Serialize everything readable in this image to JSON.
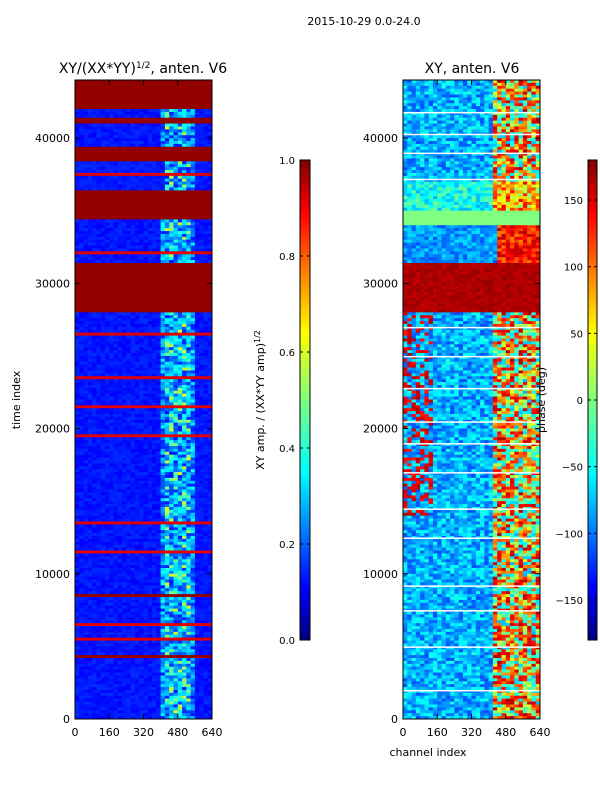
{
  "suptitle": "2015-10-29 0.0-24.0",
  "chart_data": [
    {
      "type": "heatmap",
      "title_main": "XY/(XX*YY)",
      "title_sup": "1/2",
      "title_suffix": ", anten. V6",
      "xlabel": "",
      "ylabel": "time index",
      "xlim": [
        0,
        640
      ],
      "ylim": [
        0,
        44000
      ],
      "xticks": [
        0,
        160,
        320,
        480,
        640
      ],
      "yticks": [
        0,
        10000,
        20000,
        30000,
        40000
      ],
      "colorbar": {
        "colormap": "jet",
        "label_main": "XY amp. / (XX*YY amp)",
        "label_sup": "1/2",
        "range": [
          0.0,
          1.0
        ],
        "ticks": [
          "0.0",
          "0.2",
          "0.4",
          "0.6",
          "0.8",
          "1.0"
        ]
      }
    },
    {
      "type": "heatmap",
      "title": "XY, anten. V6",
      "xlabel": "channel index",
      "ylabel": "",
      "xlim": [
        0,
        640
      ],
      "ylim": [
        0,
        44000
      ],
      "xticks": [
        0,
        160,
        320,
        480,
        640
      ],
      "yticks": [
        0,
        10000,
        20000,
        30000,
        40000
      ],
      "colorbar": {
        "colormap": "jet",
        "label": "phase (deg)",
        "range": [
          -180,
          180
        ],
        "ticks": [
          "−150",
          "−100",
          "−50",
          "0",
          "50",
          "100",
          "150"
        ]
      }
    }
  ]
}
